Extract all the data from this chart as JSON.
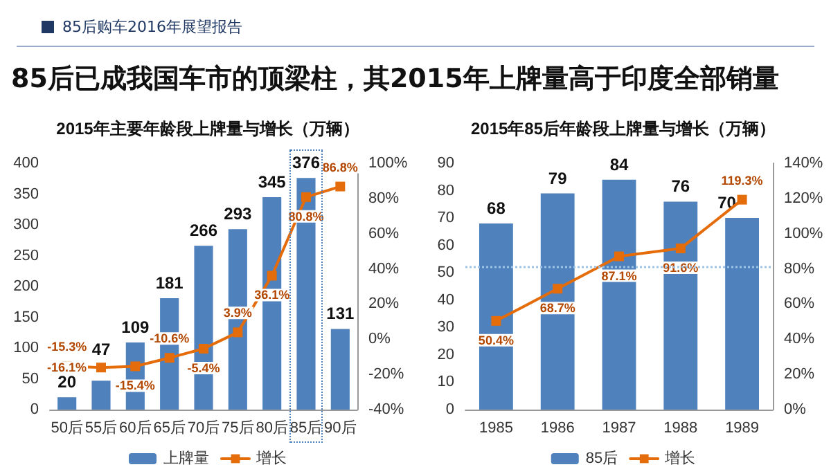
{
  "chart_data": [
    {
      "type": "other",
      "subtitle": "85后购车2016年展望报告",
      "title": "85后已成我国车市的顶梁柱，其2015年上牌量高于印度全部销量"
    },
    {
      "type": "bar",
      "title": "2015年主要年龄段上牌量与增长（万辆）",
      "categories": [
        "50后",
        "55后",
        "60后",
        "65后",
        "70后",
        "75后",
        "80后",
        "85后",
        "90后"
      ],
      "series": [
        {
          "name": "上牌量",
          "type": "bar",
          "color": "#4f81bd",
          "values": [
            20,
            47,
            109,
            181,
            266,
            293,
            345,
            376,
            131
          ],
          "value_labels": [
            "20",
            "47",
            "109",
            "181",
            "266",
            "293",
            "345",
            "376",
            "131"
          ]
        },
        {
          "name": "增长",
          "type": "line",
          "axis": "y2",
          "color": "#e46c0a",
          "values": [
            -15.3,
            -16.1,
            -15.4,
            -10.6,
            -5.4,
            3.9,
            36.1,
            80.8,
            86.8
          ],
          "value_labels": [
            "-15.3%",
            "-16.1%",
            "-15.4%",
            "-10.6%",
            "-5.4%",
            "3.9%",
            "36.1%",
            "80.8%",
            "86.8%"
          ]
        }
      ],
      "ylim": [
        0,
        400
      ],
      "yticks": [
        0,
        50,
        100,
        150,
        200,
        250,
        300,
        350,
        400
      ],
      "y2lim": [
        -40,
        100
      ],
      "y2ticks": [
        {
          "value": -40,
          "label": "-40%"
        },
        {
          "value": -20,
          "label": "-20%"
        },
        {
          "value": 0,
          "label": "0%"
        },
        {
          "value": 20,
          "label": "20%"
        },
        {
          "value": 40,
          "label": "40%"
        },
        {
          "value": 60,
          "label": "60%"
        },
        {
          "value": 80,
          "label": "80%"
        },
        {
          "value": 100,
          "label": "100%"
        }
      ],
      "marker": "square",
      "legend": "bottom",
      "grid": false
    },
    {
      "type": "bar",
      "title": "2015年85后年龄段上牌量与增长（万辆）",
      "categories": [
        "1985",
        "1986",
        "1987",
        "1988",
        "1989"
      ],
      "series": [
        {
          "name": "85后",
          "type": "bar",
          "color": "#4f81bd",
          "values": [
            68,
            79,
            84,
            76,
            70
          ],
          "value_labels": [
            "68",
            "79",
            "84",
            "76",
            "70"
          ]
        },
        {
          "name": "增长",
          "type": "line",
          "axis": "y2",
          "color": "#e46c0a",
          "values": [
            50.4,
            68.7,
            87.1,
            91.6,
            119.3
          ],
          "value_labels": [
            "50.4%",
            "68.7%",
            "87.1%",
            "91.6%",
            "119.3%"
          ]
        }
      ],
      "ylim": [
        0,
        90
      ],
      "yticks": [
        0,
        10,
        20,
        30,
        40,
        50,
        60,
        70,
        80,
        90
      ],
      "y2lim": [
        0,
        140
      ],
      "y2ticks": [
        {
          "value": 0,
          "label": "0%"
        },
        {
          "value": 20,
          "label": "20%"
        },
        {
          "value": 40,
          "label": "40%"
        },
        {
          "value": 60,
          "label": "60%"
        },
        {
          "value": 80,
          "label": "80%"
        },
        {
          "value": 100,
          "label": "100%"
        },
        {
          "value": 120,
          "label": "120%"
        },
        {
          "value": 140,
          "label": "140%"
        }
      ],
      "ref_lines": [
        {
          "axis": "y",
          "value": 52,
          "color": "#9dc3e6",
          "line_style": "dotted"
        }
      ],
      "marker": "square",
      "legend": "bottom",
      "grid": false
    }
  ]
}
